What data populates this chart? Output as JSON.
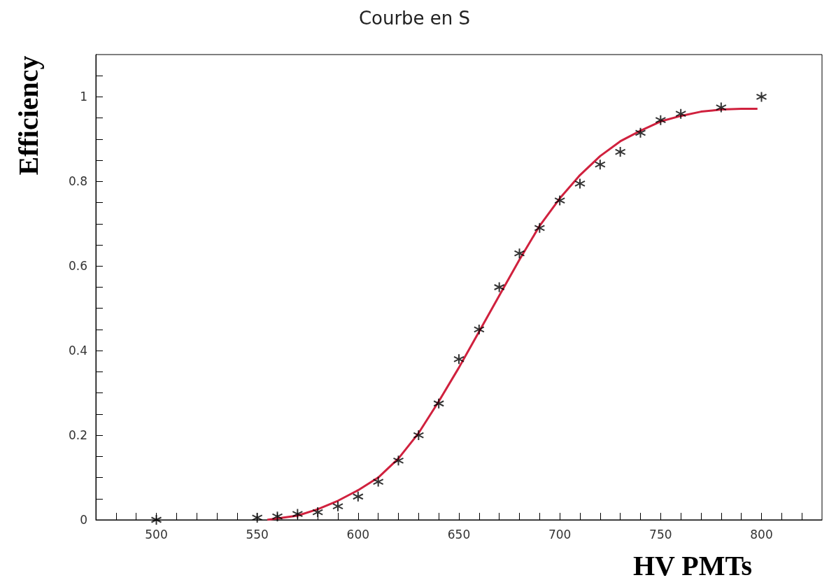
{
  "chart_data": {
    "type": "scatter",
    "title": "Courbe en S",
    "xlabel": "HV PMTs",
    "ylabel": "Efficiency",
    "marker": "cross",
    "grid": false,
    "xlim": [
      470,
      830
    ],
    "ylim": [
      0,
      1.1
    ],
    "xticks": [
      {
        "value": 480,
        "label": null
      },
      {
        "value": 490,
        "label": null
      },
      500,
      {
        "value": 510,
        "label": null
      },
      {
        "value": 520,
        "label": null
      },
      {
        "value": 530,
        "label": null
      },
      {
        "value": 540,
        "label": null
      },
      550,
      {
        "value": 560,
        "label": null
      },
      {
        "value": 570,
        "label": null
      },
      {
        "value": 580,
        "label": null
      },
      {
        "value": 590,
        "label": null
      },
      600,
      {
        "value": 610,
        "label": null
      },
      {
        "value": 620,
        "label": null
      },
      {
        "value": 630,
        "label": null
      },
      {
        "value": 640,
        "label": null
      },
      650,
      {
        "value": 660,
        "label": null
      },
      {
        "value": 670,
        "label": null
      },
      {
        "value": 680,
        "label": null
      },
      {
        "value": 690,
        "label": null
      },
      700,
      {
        "value": 710,
        "label": null
      },
      {
        "value": 720,
        "label": null
      },
      {
        "value": 730,
        "label": null
      },
      {
        "value": 740,
        "label": null
      },
      750,
      {
        "value": 760,
        "label": null
      },
      {
        "value": 770,
        "label": null
      },
      {
        "value": 780,
        "label": null
      },
      {
        "value": 790,
        "label": null
      },
      800,
      {
        "value": 810,
        "label": null
      },
      {
        "value": 820,
        "label": null
      }
    ],
    "yticks": [
      0,
      {
        "value": 0.05,
        "label": null
      },
      {
        "value": 0.1,
        "label": null
      },
      {
        "value": 0.15,
        "label": null
      },
      0.2,
      {
        "value": 0.25,
        "label": null
      },
      {
        "value": 0.3,
        "label": null
      },
      {
        "value": 0.35,
        "label": null
      },
      0.4,
      {
        "value": 0.45,
        "label": null
      },
      {
        "value": 0.5,
        "label": null
      },
      {
        "value": 0.55,
        "label": null
      },
      0.6,
      {
        "value": 0.65,
        "label": null
      },
      {
        "value": 0.7,
        "label": null
      },
      {
        "value": 0.75,
        "label": null
      },
      0.8,
      {
        "value": 0.85,
        "label": null
      },
      {
        "value": 0.9,
        "label": null
      },
      {
        "value": 0.95,
        "label": null
      },
      1,
      {
        "value": 1.05,
        "label": null
      }
    ],
    "series": [
      {
        "color": "#000000",
        "x": [
          500,
          550,
          560,
          570,
          580,
          590,
          600,
          610,
          620,
          630,
          640,
          650,
          660,
          670,
          680,
          690,
          700,
          710,
          720,
          730,
          740,
          750,
          760,
          780,
          800
        ],
        "values": [
          0,
          0.005,
          0.008,
          0.014,
          0.018,
          0.032,
          0.055,
          0.09,
          0.14,
          0.2,
          0.275,
          0.38,
          0.45,
          0.55,
          0.63,
          0.69,
          0.755,
          0.795,
          0.84,
          0.87,
          0.915,
          0.945,
          0.96,
          0.975,
          1.0
        ]
      },
      {
        "type": "line",
        "marker": "none",
        "color": "#d0213e",
        "x": [
          555,
          570,
          580,
          590,
          600,
          610,
          620,
          630,
          640,
          650,
          660,
          670,
          680,
          690,
          700,
          710,
          720,
          730,
          740,
          750,
          760,
          770,
          780,
          790,
          798
        ],
        "values": [
          0,
          0.01,
          0.025,
          0.045,
          0.07,
          0.1,
          0.145,
          0.205,
          0.28,
          0.36,
          0.445,
          0.53,
          0.615,
          0.695,
          0.76,
          0.815,
          0.86,
          0.895,
          0.92,
          0.942,
          0.955,
          0.965,
          0.97,
          0.972,
          0.972
        ]
      }
    ]
  }
}
